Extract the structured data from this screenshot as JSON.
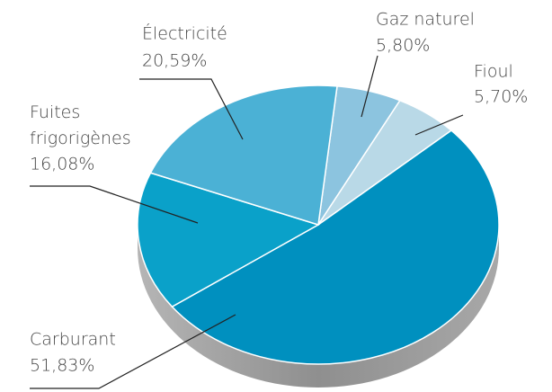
{
  "chart_data": {
    "type": "pie",
    "categories": [
      "Gaz naturel",
      "Fioul",
      "Carburant",
      "Fuites frigorigènes",
      "Électricité"
    ],
    "values": [
      5.8,
      5.7,
      51.83,
      16.08,
      20.59
    ],
    "value_labels": [
      "5,80%",
      "5,70%",
      "51,83%",
      "16,08%",
      "20,59%"
    ],
    "colors": [
      "#8cc4df",
      "#b9d9e7",
      "#0090bf",
      "#0aa1c9",
      "#4bb1d5"
    ]
  }
}
